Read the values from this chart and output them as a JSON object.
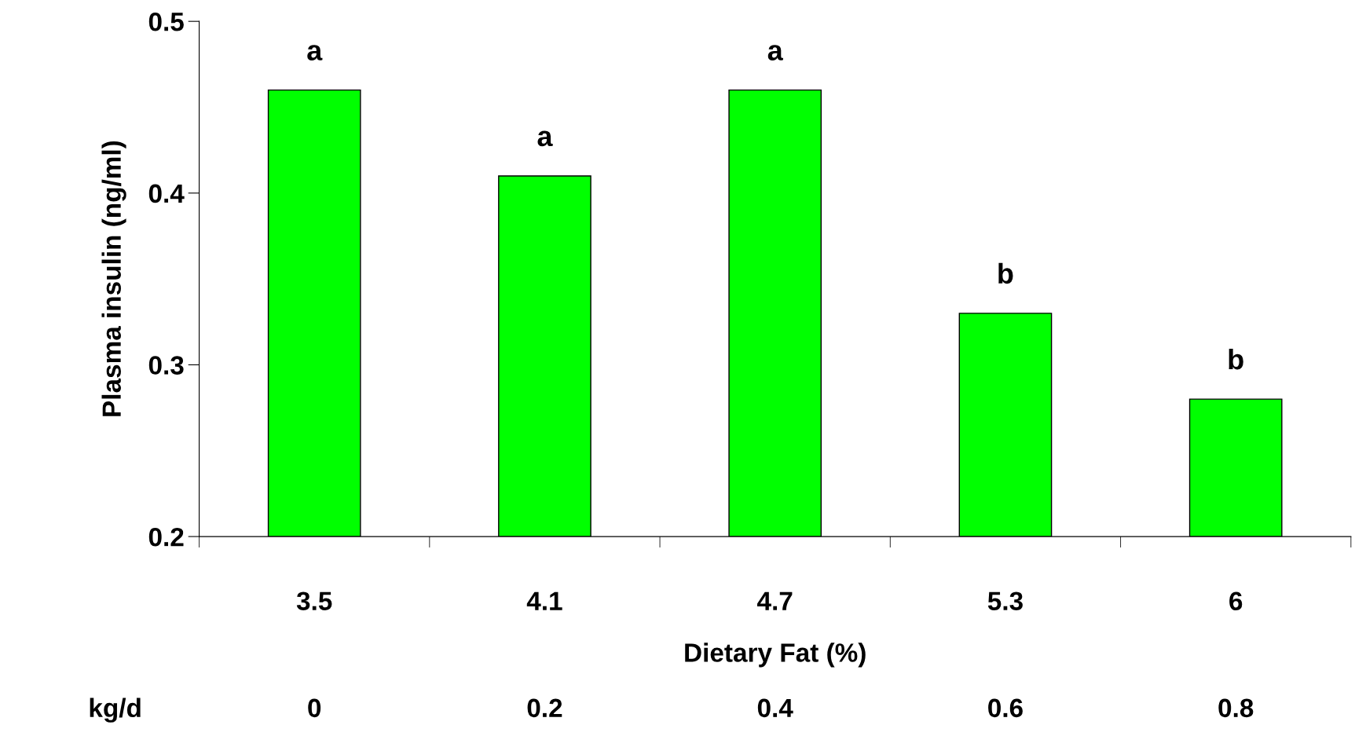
{
  "chart_data": {
    "type": "bar",
    "xlabel": "Dietary Fat (%)",
    "ylabel": "Plasma insulin (ng/ml)",
    "categories": [
      "3.5",
      "4.1",
      "4.7",
      "5.3",
      "6"
    ],
    "values": [
      0.46,
      0.41,
      0.46,
      0.33,
      0.28
    ],
    "value_labels": [
      "a",
      "a",
      "a",
      "b",
      "b"
    ],
    "color": "#00ff00",
    "ylim": [
      0.2,
      0.5
    ],
    "yticks": [
      0.2,
      0.3,
      0.4,
      0.5
    ],
    "grid": false,
    "legend": false,
    "annotations": [
      "kg/d",
      "0",
      "0.2",
      "0.4",
      "0.6",
      "0.8"
    ]
  }
}
